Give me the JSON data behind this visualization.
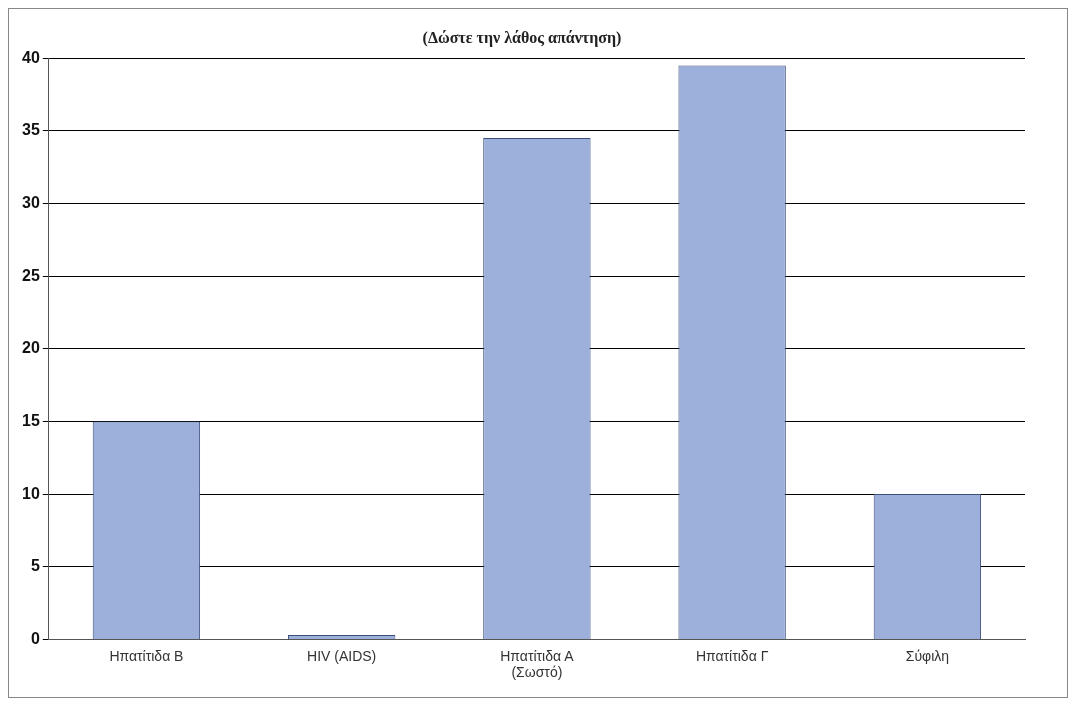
{
  "chart_data": {
    "type": "bar",
    "title": "(Δώστε την λάθος απάντηση)",
    "categories": [
      "Ηπατίτιδα Β",
      "HIV (AIDS)",
      "Ηπατίτιδα Α\n(Σωστό)",
      "Ηπατίτιδα Γ",
      "Σύφιλη"
    ],
    "values": [
      15,
      0.3,
      34.5,
      39.5,
      10
    ],
    "color": "#9db0dc",
    "ylim": [
      0,
      40
    ],
    "yticks": [
      0,
      5,
      10,
      15,
      20,
      25,
      30,
      35,
      40
    ],
    "grid": "y",
    "legend": false
  }
}
